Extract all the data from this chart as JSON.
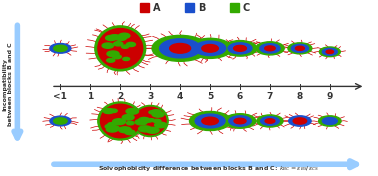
{
  "title": "",
  "legend_labels": [
    "A",
    "B",
    "C"
  ],
  "legend_colors": [
    "#cc0000",
    "#1a4fcc",
    "#33aa00"
  ],
  "x_axis_label": "Solvophobicity difference between blocks B and C: k_BC=ε_BS/ε_CS",
  "y_axis_label": "Incompatibility\nbetween blocks B and C",
  "x_ticks": [
    "<1",
    "1",
    "2",
    "3",
    "4",
    "5",
    "6",
    "7",
    "8",
    "9"
  ],
  "arrow_color": "#99ccff",
  "bg_color": "#ffffff",
  "axis_color": "#333333",
  "label_color": "#cc0000",
  "label_fontsize": 7,
  "tick_fontsize": 6.5
}
